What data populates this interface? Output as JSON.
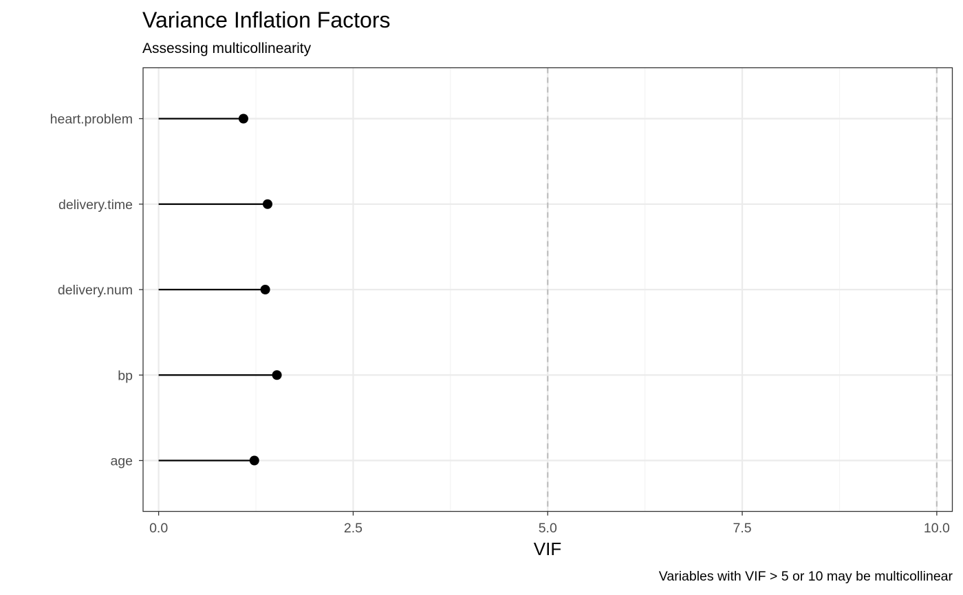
{
  "chart_data": {
    "type": "lollipop",
    "title": "Variance Inflation Factors",
    "subtitle": "Assessing multicollinearity",
    "xlabel": "VIF",
    "ylabel": "",
    "caption": "Variables with VIF > 5 or 10 may be multicollinear",
    "xlim": [
      -0.2,
      10.2
    ],
    "x_ticks": [
      0.0,
      2.5,
      5.0,
      7.5,
      10.0
    ],
    "x_tick_labels": [
      "0.0",
      "2.5",
      "5.0",
      "7.5",
      "10.0"
    ],
    "categories": [
      "heart.problem",
      "delivery.time",
      "delivery.num",
      "bp",
      "age"
    ],
    "values": [
      1.09,
      1.4,
      1.37,
      1.52,
      1.23
    ],
    "segment_start": 0,
    "reference_lines": [
      5,
      10
    ],
    "reference_line_style": "dashed",
    "grid": true,
    "theme": "bw",
    "colors": {
      "segment": "#000000",
      "point": "#000000",
      "reference_line": "#bebebe",
      "grid_major": "#ebebeb",
      "grid_minor": "#f4f4f4",
      "panel_border": "#333333"
    }
  }
}
